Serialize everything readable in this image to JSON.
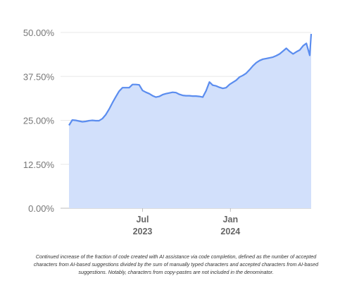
{
  "chart_data": {
    "type": "area",
    "title": "",
    "xlabel": "",
    "ylabel": "",
    "ylim": [
      0,
      50
    ],
    "y_ticks": [
      "0.00%",
      "12.50%",
      "25.00%",
      "37.50%",
      "50.00%"
    ],
    "y_tick_values": [
      0,
      12.5,
      25,
      37.5,
      50
    ],
    "x_ticks": [
      {
        "value": "2023-07",
        "label": "Jul",
        "sublabel": "2023"
      },
      {
        "value": "2024-01",
        "label": "Jan",
        "sublabel": "2024"
      }
    ],
    "xlim": [
      "2023-01-28",
      "2024-06-18"
    ],
    "grid": true,
    "legend": "none",
    "colors": {
      "line": "#5b8def",
      "fill": "#d2e0fb",
      "grid": "#e8e8e8",
      "baseline": "#bdbdbd"
    },
    "series": [
      {
        "x": [
          "2023-01-28",
          "2023-02-04",
          "2023-02-11",
          "2023-02-18",
          "2023-02-25",
          "2023-03-04",
          "2023-03-11",
          "2023-03-18",
          "2023-03-25",
          "2023-04-01",
          "2023-04-08",
          "2023-04-15",
          "2023-04-22",
          "2023-04-29",
          "2023-05-06",
          "2023-05-13",
          "2023-05-20",
          "2023-05-27",
          "2023-06-03",
          "2023-06-10",
          "2023-06-17",
          "2023-06-24",
          "2023-07-01",
          "2023-07-08",
          "2023-07-15",
          "2023-07-22",
          "2023-07-29",
          "2023-08-05",
          "2023-08-12",
          "2023-08-19",
          "2023-08-26",
          "2023-09-02",
          "2023-09-09",
          "2023-09-16",
          "2023-09-23",
          "2023-09-30",
          "2023-10-07",
          "2023-10-14",
          "2023-10-21",
          "2023-10-28",
          "2023-11-04",
          "2023-11-11",
          "2023-11-18",
          "2023-11-25",
          "2023-12-02",
          "2023-12-09",
          "2023-12-16",
          "2023-12-23",
          "2023-12-30",
          "2024-01-06",
          "2024-01-13",
          "2024-01-20",
          "2024-01-27",
          "2024-02-03",
          "2024-02-10",
          "2024-02-17",
          "2024-02-24",
          "2024-03-02",
          "2024-03-09",
          "2024-03-16",
          "2024-03-23",
          "2024-03-30",
          "2024-04-06",
          "2024-04-13",
          "2024-04-20",
          "2024-04-27",
          "2024-05-04",
          "2024-05-11",
          "2024-05-18",
          "2024-05-25",
          "2024-06-01",
          "2024-06-08",
          "2024-06-15",
          "2024-06-18"
        ],
        "values": [
          23.6,
          25.1,
          25.0,
          24.8,
          24.6,
          24.7,
          24.9,
          25.0,
          24.9,
          24.9,
          25.5,
          26.6,
          28.2,
          30.0,
          31.7,
          33.3,
          34.3,
          34.3,
          34.3,
          35.2,
          35.2,
          35.1,
          33.5,
          33.0,
          32.6,
          32.0,
          31.6,
          31.8,
          32.3,
          32.6,
          32.8,
          33.0,
          32.9,
          32.4,
          32.1,
          32.0,
          32.0,
          31.9,
          31.9,
          31.8,
          31.6,
          33.4,
          35.9,
          35.0,
          34.8,
          34.4,
          34.1,
          34.3,
          35.2,
          35.8,
          36.4,
          37.3,
          37.8,
          38.4,
          39.4,
          40.5,
          41.4,
          42.0,
          42.4,
          42.6,
          42.8,
          43.0,
          43.4,
          43.9,
          44.7,
          45.5,
          44.6,
          43.9,
          44.5,
          45.0,
          46.2,
          46.9,
          43.5,
          49.6
        ]
      }
    ]
  },
  "caption": "Continued increase of the fraction of code created with AI assistance via code completion, defined as the number of accepted characters from AI-based suggestions divided by the sum of manually typed characters and accepted characters from AI-based suggestions. Notably, characters from copy-pastes are not included in the denominator."
}
